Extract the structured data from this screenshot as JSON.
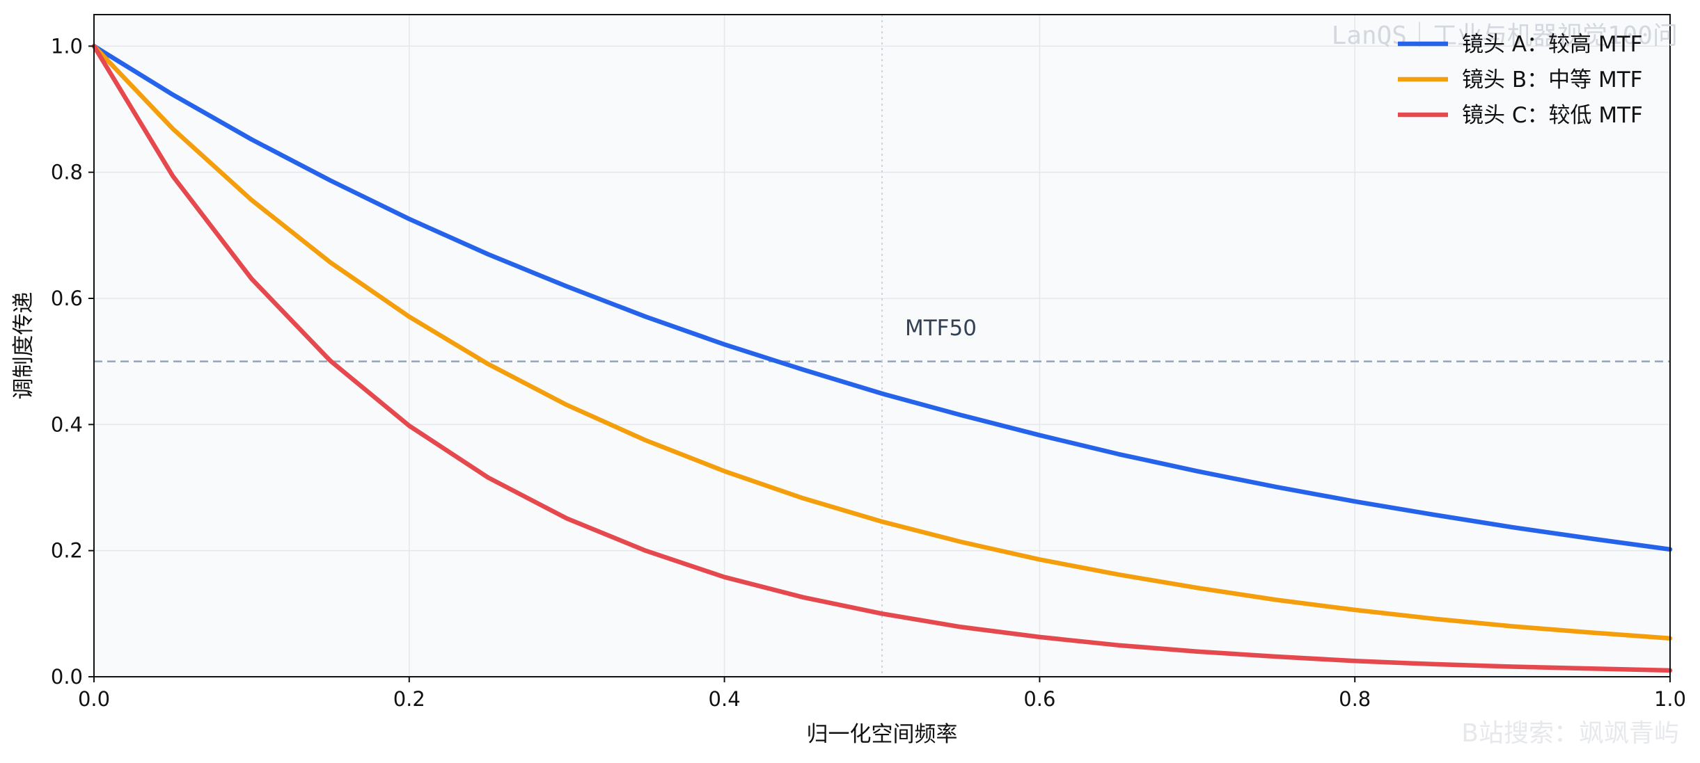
{
  "chart_data": {
    "type": "line",
    "title": "",
    "xlabel": "归一化空间频率",
    "ylabel": "调制度传递",
    "xlim": [
      0.0,
      1.0
    ],
    "ylim": [
      0.0,
      1.05
    ],
    "xticks": [
      "0.0",
      "0.2",
      "0.4",
      "0.6",
      "0.8",
      "1.0"
    ],
    "yticks": [
      "0.0",
      "0.2",
      "0.4",
      "0.6",
      "0.8",
      "1.0"
    ],
    "grid": true,
    "legend_position": "top-right",
    "x": [
      0.0,
      0.05,
      0.1,
      0.15,
      0.2,
      0.25,
      0.3,
      0.35,
      0.4,
      0.45,
      0.5,
      0.55,
      0.6,
      0.65,
      0.7,
      0.75,
      0.8,
      0.85,
      0.9,
      0.95,
      1.0
    ],
    "series": [
      {
        "name": "镜头 A：较高 MTF",
        "color": "#2563eb",
        "values": [
          1.0,
          0.923,
          0.852,
          0.787,
          0.726,
          0.67,
          0.619,
          0.571,
          0.527,
          0.487,
          0.449,
          0.415,
          0.383,
          0.353,
          0.326,
          0.301,
          0.278,
          0.257,
          0.237,
          0.219,
          0.202
        ]
      },
      {
        "name": "镜头 B：中等 MTF",
        "color": "#f59e0b",
        "values": [
          1.0,
          0.869,
          0.756,
          0.657,
          0.571,
          0.496,
          0.431,
          0.375,
          0.326,
          0.283,
          0.246,
          0.214,
          0.186,
          0.162,
          0.141,
          0.122,
          0.106,
          0.092,
          0.08,
          0.07,
          0.061
        ]
      },
      {
        "name": "镜头 C：较低 MTF",
        "color": "#e5484d",
        "values": [
          1.0,
          0.794,
          0.631,
          0.501,
          0.398,
          0.316,
          0.251,
          0.2,
          0.158,
          0.126,
          0.1,
          0.079,
          0.063,
          0.05,
          0.04,
          0.032,
          0.025,
          0.02,
          0.016,
          0.013,
          0.01
        ]
      }
    ],
    "reference_lines": [
      {
        "orientation": "horizontal",
        "value": 0.5,
        "label": "MTF50",
        "color": "#94a3b8"
      },
      {
        "orientation": "vertical",
        "value": 0.5,
        "color": "#cbd5e1"
      }
    ]
  },
  "watermarks": {
    "top": "LanQS｜工业与机器视觉100问",
    "bottom": "B站搜索：飒飒青屿"
  }
}
